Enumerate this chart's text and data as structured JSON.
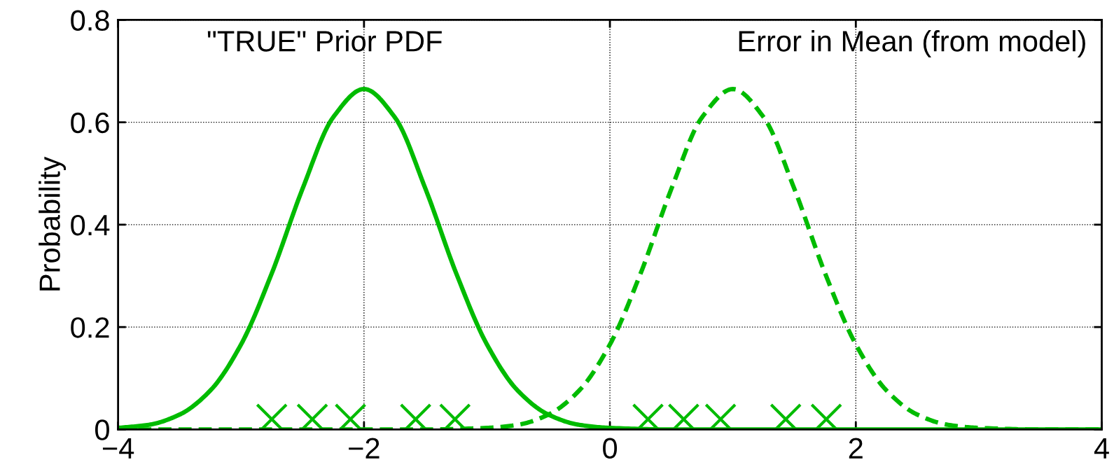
{
  "chart_data": {
    "type": "line",
    "ylabel": "Probability",
    "annotations": [
      "\"TRUE\" Prior PDF",
      "Error in Mean (from model)"
    ],
    "xlim": [
      -4,
      4
    ],
    "xticks": [
      {
        "value": -4,
        "label": "−4"
      },
      {
        "value": -2,
        "label": "−2"
      },
      0,
      2,
      4
    ],
    "ylim": [
      0,
      0.8
    ],
    "yticks": [
      0,
      0.2,
      0.4,
      0.6,
      0.8
    ],
    "grid": true,
    "series": [
      {
        "line_style": "solid",
        "color": "#00bb00",
        "x": [
          -4,
          -3.75,
          -3.5,
          -3.25,
          -3,
          -2.75,
          -2.5,
          -2.25,
          -2,
          -1.75,
          -1.5,
          -1.25,
          -1,
          -0.75,
          -0.5,
          -0.25,
          0,
          0.5,
          1,
          2,
          3,
          4
        ],
        "values": [
          0.003,
          0.009,
          0.029,
          0.076,
          0.166,
          0.305,
          0.47,
          0.61,
          0.665,
          0.61,
          0.47,
          0.305,
          0.166,
          0.076,
          0.029,
          0.009,
          0.003,
          0,
          0,
          0,
          0,
          0
        ]
      },
      {
        "line_style": "dashed",
        "color": "#00bb00",
        "x": [
          -4,
          -3,
          -2,
          -1.5,
          -1,
          -0.75,
          -0.5,
          -0.25,
          0,
          0.25,
          0.5,
          0.75,
          1,
          1.25,
          1.5,
          1.75,
          2,
          2.25,
          2.5,
          2.75,
          3,
          3.5,
          4
        ],
        "values": [
          0,
          0,
          0,
          0,
          0.003,
          0.009,
          0.029,
          0.076,
          0.166,
          0.305,
          0.47,
          0.61,
          0.665,
          0.61,
          0.47,
          0.305,
          0.166,
          0.076,
          0.029,
          0.009,
          0.003,
          0,
          0
        ]
      },
      {
        "type": "scatter",
        "marker": "cross",
        "color": "#00bb00",
        "x": [
          -2.75,
          -2.42,
          -2.11,
          -1.58,
          -1.26
        ],
        "values": [
          0.02,
          0.02,
          0.02,
          0.02,
          0.02
        ]
      },
      {
        "type": "scatter",
        "marker": "cross",
        "color": "#00bb00",
        "x": [
          0.31,
          0.6,
          0.9,
          1.43,
          1.76
        ],
        "values": [
          0.02,
          0.02,
          0.02,
          0.02,
          0.02
        ]
      }
    ]
  }
}
